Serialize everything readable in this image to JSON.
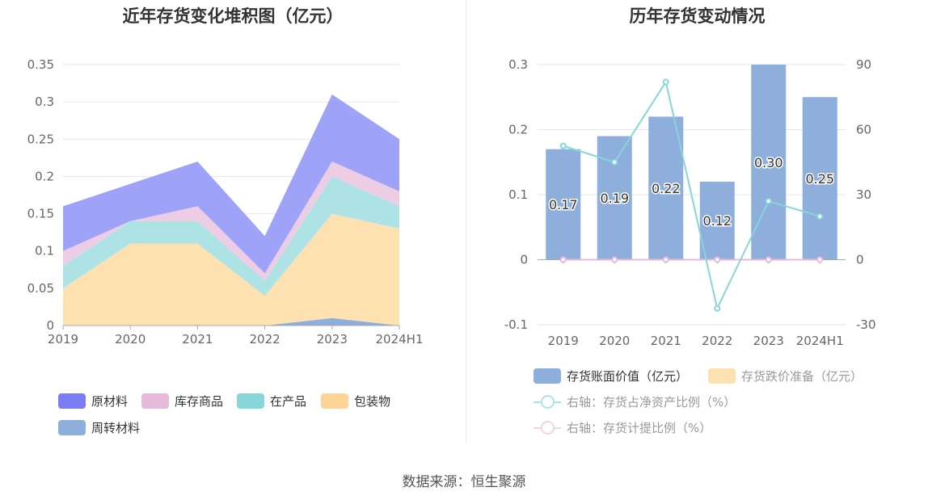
{
  "source": "数据来源：恒生聚源",
  "chart_data": [
    {
      "type": "area",
      "stacked": true,
      "title": "近年存货变化堆积图（亿元）",
      "categories": [
        "2019",
        "2020",
        "2021",
        "2022",
        "2023",
        "2024H1"
      ],
      "ylim": [
        0,
        0.35
      ],
      "yticks": [
        "0",
        "0.05",
        "0.1",
        "0.15",
        "0.2",
        "0.25",
        "0.3",
        "0.35"
      ],
      "series": [
        {
          "name": "周转材料",
          "color": "#8eaedc",
          "values": [
            0,
            0,
            0,
            0,
            0.01,
            0
          ]
        },
        {
          "name": "包装物",
          "color": "#fde1b0",
          "values": [
            0.05,
            0.11,
            0.11,
            0.04,
            0.14,
            0.13
          ]
        },
        {
          "name": "在产品",
          "color": "#aee3e6",
          "values": [
            0.03,
            0.03,
            0.03,
            0.02,
            0.05,
            0.03
          ]
        },
        {
          "name": "库存商品",
          "color": "#eccde4",
          "values": [
            0.02,
            0,
            0.02,
            0.01,
            0.02,
            0.02
          ]
        },
        {
          "name": "原材料",
          "color": "#9fa3f7",
          "values": [
            0.06,
            0.05,
            0.06,
            0.05,
            0.09,
            0.07
          ]
        }
      ],
      "legend": [
        {
          "name": "原材料",
          "color": "#7a7cf4"
        },
        {
          "name": "库存商品",
          "color": "#e6b9da"
        },
        {
          "name": "在产品",
          "color": "#86d6da"
        },
        {
          "name": "包装物",
          "color": "#fcd596"
        },
        {
          "name": "周转材料",
          "color": "#8eaedc"
        }
      ]
    },
    {
      "type": "bar",
      "title": "历年存货变动情况",
      "categories": [
        "2019",
        "2020",
        "2021",
        "2022",
        "2023",
        "2024H1"
      ],
      "ylim": [
        -0.1,
        0.3
      ],
      "yticks": [
        "-0.1",
        "0",
        "0.1",
        "0.2",
        "0.3"
      ],
      "y2lim": [
        -30,
        90
      ],
      "y2ticks": [
        "-30",
        "0",
        "30",
        "60",
        "90"
      ],
      "series": [
        {
          "name": "存货账面价值（亿元）",
          "type": "bar",
          "axis": "left",
          "color": "#8eaedc",
          "values": [
            0.17,
            0.19,
            0.22,
            0.12,
            0.3,
            0.25
          ],
          "labels": [
            "0.17",
            "0.19",
            "0.22",
            "0.12",
            "0.30",
            "0.25"
          ]
        },
        {
          "name": "存货跌价准备（亿元）",
          "type": "bar",
          "axis": "left",
          "color": "#fde1b0",
          "values": [
            0,
            0,
            0,
            0,
            0,
            0
          ]
        },
        {
          "name": "右轴：存货占净资产比例（%）",
          "type": "line",
          "axis": "right",
          "color": "#86d6da",
          "values": [
            52.5,
            45,
            82,
            -22.5,
            27,
            20
          ]
        },
        {
          "name": "右轴：存货计提比例（%）",
          "type": "line",
          "axis": "right",
          "color": "#e6b9da",
          "values": [
            0,
            0,
            0,
            0,
            0,
            0
          ]
        }
      ]
    }
  ]
}
